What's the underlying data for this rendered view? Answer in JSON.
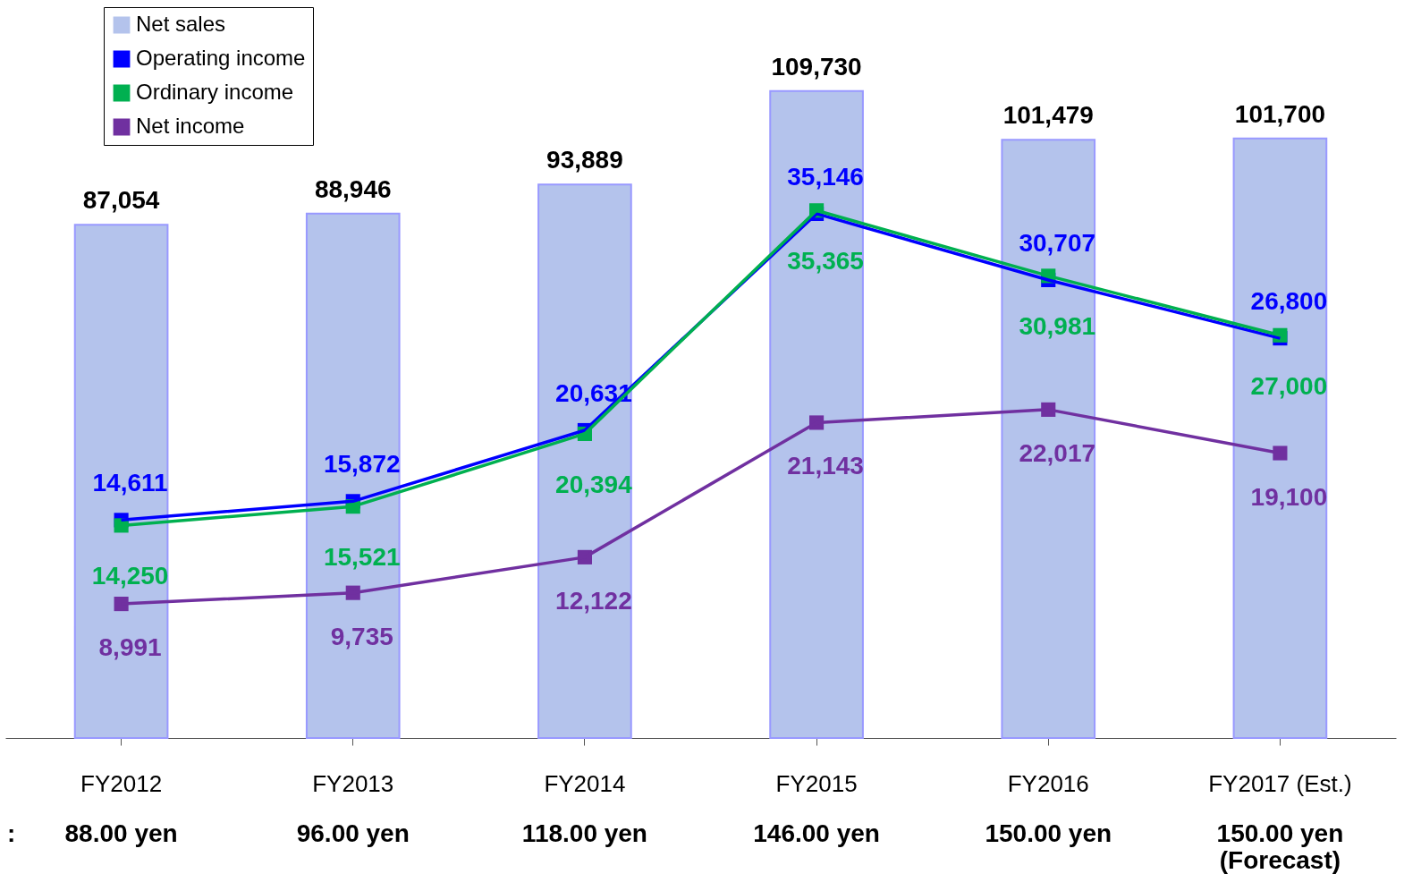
{
  "chart_data": {
    "type": "bar",
    "categories": [
      "FY2012",
      "FY2013",
      "FY2014",
      "FY2015",
      "FY2016",
      "FY2017 (Est.)"
    ],
    "series": [
      {
        "name": "Net sales",
        "color": "#b4c3ec",
        "values": [
          87054,
          88946,
          93889,
          109730,
          101479,
          101700
        ],
        "value_labels": [
          "87,054",
          "88,946",
          "93,889",
          "109,730",
          "101,479",
          "101,700"
        ]
      },
      {
        "name": "Operating income",
        "type": "line",
        "axis": "y2",
        "color": "#0000ff",
        "values": [
          14611,
          15872,
          20631,
          35146,
          30707,
          26800
        ],
        "value_labels": [
          "14,611",
          "15,872",
          "20,631",
          "35,146",
          "30,707",
          "26,800"
        ]
      },
      {
        "name": "Ordinary income",
        "type": "line",
        "axis": "y2",
        "color": "#00b050",
        "values": [
          14250,
          15521,
          20394,
          35365,
          30981,
          27000
        ],
        "value_labels": [
          "14,250",
          "15,521",
          "20,394",
          "35,365",
          "30,981",
          "27,000"
        ]
      },
      {
        "name": "Net income",
        "type": "line",
        "axis": "y2",
        "color": "#7030a0",
        "values": [
          8991,
          9735,
          12122,
          21143,
          22017,
          19100
        ],
        "value_labels": [
          "8,991",
          "9,735",
          "12,122",
          "21,143",
          "22,017",
          "19,100"
        ]
      }
    ],
    "legend": "top left",
    "marker": "square",
    "line_style": "solid",
    "tick_labels": "x",
    "annotations": [
      ":",
      "88.00 yen",
      "96.00 yen",
      "118.00 yen",
      "146.00 yen",
      "150.00 yen",
      "150.00 yen\n(Forecast)"
    ]
  }
}
